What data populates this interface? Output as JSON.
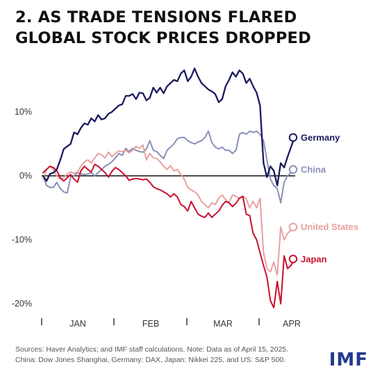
{
  "title_lines": [
    "2. AS TRADE TENSIONS FLARED",
    "GLOBAL STOCK PRICES DROPPED"
  ],
  "source_lines": [
    "Sources: Haver Analytics; and IMF staff calculations.  Note: Data as of April 15, 2025.",
    "China: Dow Jones Shanghai, Germany: DAX, Japan: Nikkei 225, and US: S&P 500."
  ],
  "logo": "IMF",
  "chart_data": {
    "type": "line",
    "title": "2. AS TRADE TENSIONS FLARED GLOBAL STOCK PRICES DROPPED",
    "xlabel": "",
    "ylabel": "",
    "x_ticks": [
      "JAN",
      "FEB",
      "MAR",
      "APR"
    ],
    "y_ticks": [
      "10%",
      "0%",
      "-10%",
      "-20%"
    ],
    "y_tick_values": [
      10,
      0,
      -10,
      -20
    ],
    "ylim": [
      -21.5,
      17.5
    ],
    "n_points": 74,
    "grid": false,
    "baseline": 0,
    "legend": "labels at line ends",
    "series": [
      {
        "name": "Germany",
        "color": "#1a1a5e",
        "values": [
          0.0,
          -0.8,
          0.3,
          0.5,
          1.0,
          2.5,
          4.2,
          4.6,
          5.0,
          6.8,
          6.5,
          7.5,
          8.2,
          8.0,
          9.0,
          8.5,
          9.5,
          8.8,
          9.0,
          9.7,
          10.0,
          10.5,
          11.0,
          11.2,
          12.5,
          12.5,
          12.8,
          12.0,
          13.0,
          12.9,
          11.8,
          12.2,
          13.8,
          13.0,
          13.8,
          12.9,
          14.0,
          14.5,
          15.0,
          14.8,
          16.0,
          16.5,
          14.8,
          15.5,
          16.8,
          15.5,
          14.5,
          14.0,
          13.5,
          13.2,
          12.8,
          11.5,
          12.0,
          14.0,
          15.0,
          16.2,
          15.5,
          16.5,
          16.0,
          14.5,
          15.2,
          14.0,
          13.0,
          11.0,
          2.0,
          -0.2,
          1.5,
          0.8,
          -1.5,
          2.0,
          1.3,
          3.0,
          4.5,
          6.0
        ]
      },
      {
        "name": "China",
        "color": "#8a8fb8",
        "values": [
          0.0,
          -1.5,
          -1.8,
          -1.8,
          -1.0,
          -2.0,
          -2.5,
          -2.7,
          -0.2,
          0.0,
          0.5,
          0.3,
          0.2,
          0.3,
          0.5,
          0.0,
          0.5,
          1.0,
          1.5,
          1.8,
          2.2,
          2.8,
          3.5,
          3.2,
          4.3,
          3.8,
          4.3,
          4.0,
          3.8,
          3.7,
          4.2,
          5.5,
          4.0,
          3.8,
          3.2,
          2.7,
          4.0,
          4.5,
          5.0,
          5.8,
          6.0,
          6.0,
          5.5,
          5.2,
          5.0,
          5.3,
          5.5,
          6.0,
          7.0,
          5.2,
          4.5,
          4.2,
          4.5,
          4.0,
          4.0,
          3.5,
          4.0,
          6.5,
          6.8,
          6.5,
          7.0,
          6.8,
          7.0,
          6.5,
          5.5,
          2.5,
          -0.5,
          -1.5,
          -2.0,
          -4.2,
          -1.0,
          0.0,
          0.5,
          1.0
        ]
      },
      {
        "name": "United States",
        "color": "#e8a0a0",
        "values": [
          -0.5,
          1.0,
          1.5,
          1.0,
          0.0,
          -0.5,
          -0.3,
          0.3,
          0.6,
          0.4,
          0.6,
          1.5,
          2.2,
          2.5,
          2.0,
          2.8,
          3.5,
          3.3,
          2.8,
          3.7,
          3.0,
          3.5,
          3.9,
          3.8,
          4.0,
          3.6,
          4.0,
          4.6,
          4.3,
          4.8,
          2.5,
          3.5,
          2.8,
          2.7,
          2.2,
          1.5,
          1.0,
          1.6,
          0.8,
          1.0,
          0.2,
          -0.5,
          -1.8,
          -2.2,
          -2.5,
          -3.0,
          -4.0,
          -4.5,
          -5.0,
          -4.2,
          -4.5,
          -3.5,
          -3.0,
          -3.7,
          -4.2,
          -3.0,
          -3.2,
          -3.5,
          -3.2,
          -3.6,
          -5.0,
          -4.0,
          -5.0,
          -3.5,
          -12.0,
          -14.5,
          -15.0,
          -13.5,
          -15.5,
          -8.0,
          -10.0,
          -9.0,
          -8.5,
          -8.0
        ]
      },
      {
        "name": "Japan",
        "color": "#c8102e",
        "values": [
          0.5,
          1.0,
          1.5,
          1.3,
          0.8,
          -0.3,
          -0.8,
          -0.3,
          0.2,
          -0.5,
          -1.0,
          0.8,
          1.5,
          1.0,
          0.6,
          1.8,
          1.5,
          1.0,
          0.5,
          -0.2,
          0.7,
          1.3,
          1.0,
          0.5,
          0.0,
          -0.7,
          -0.5,
          -0.4,
          -0.5,
          -0.6,
          -0.5,
          -1.0,
          -1.7,
          -2.0,
          -2.2,
          -2.5,
          -2.8,
          -3.3,
          -2.8,
          -3.3,
          -4.5,
          -4.8,
          -5.5,
          -4.0,
          -5.0,
          -6.0,
          -6.3,
          -6.5,
          -5.8,
          -6.5,
          -6.0,
          -5.5,
          -4.6,
          -4.0,
          -4.2,
          -4.8,
          -4.3,
          -3.5,
          -3.2,
          -6.0,
          -6.2,
          -9.0,
          -10.0,
          -12.0,
          -14.0,
          -15.8,
          -19.5,
          -20.6,
          -16.5,
          -20.0,
          -12.5,
          -14.5,
          -14.0,
          -13.0
        ]
      }
    ]
  }
}
